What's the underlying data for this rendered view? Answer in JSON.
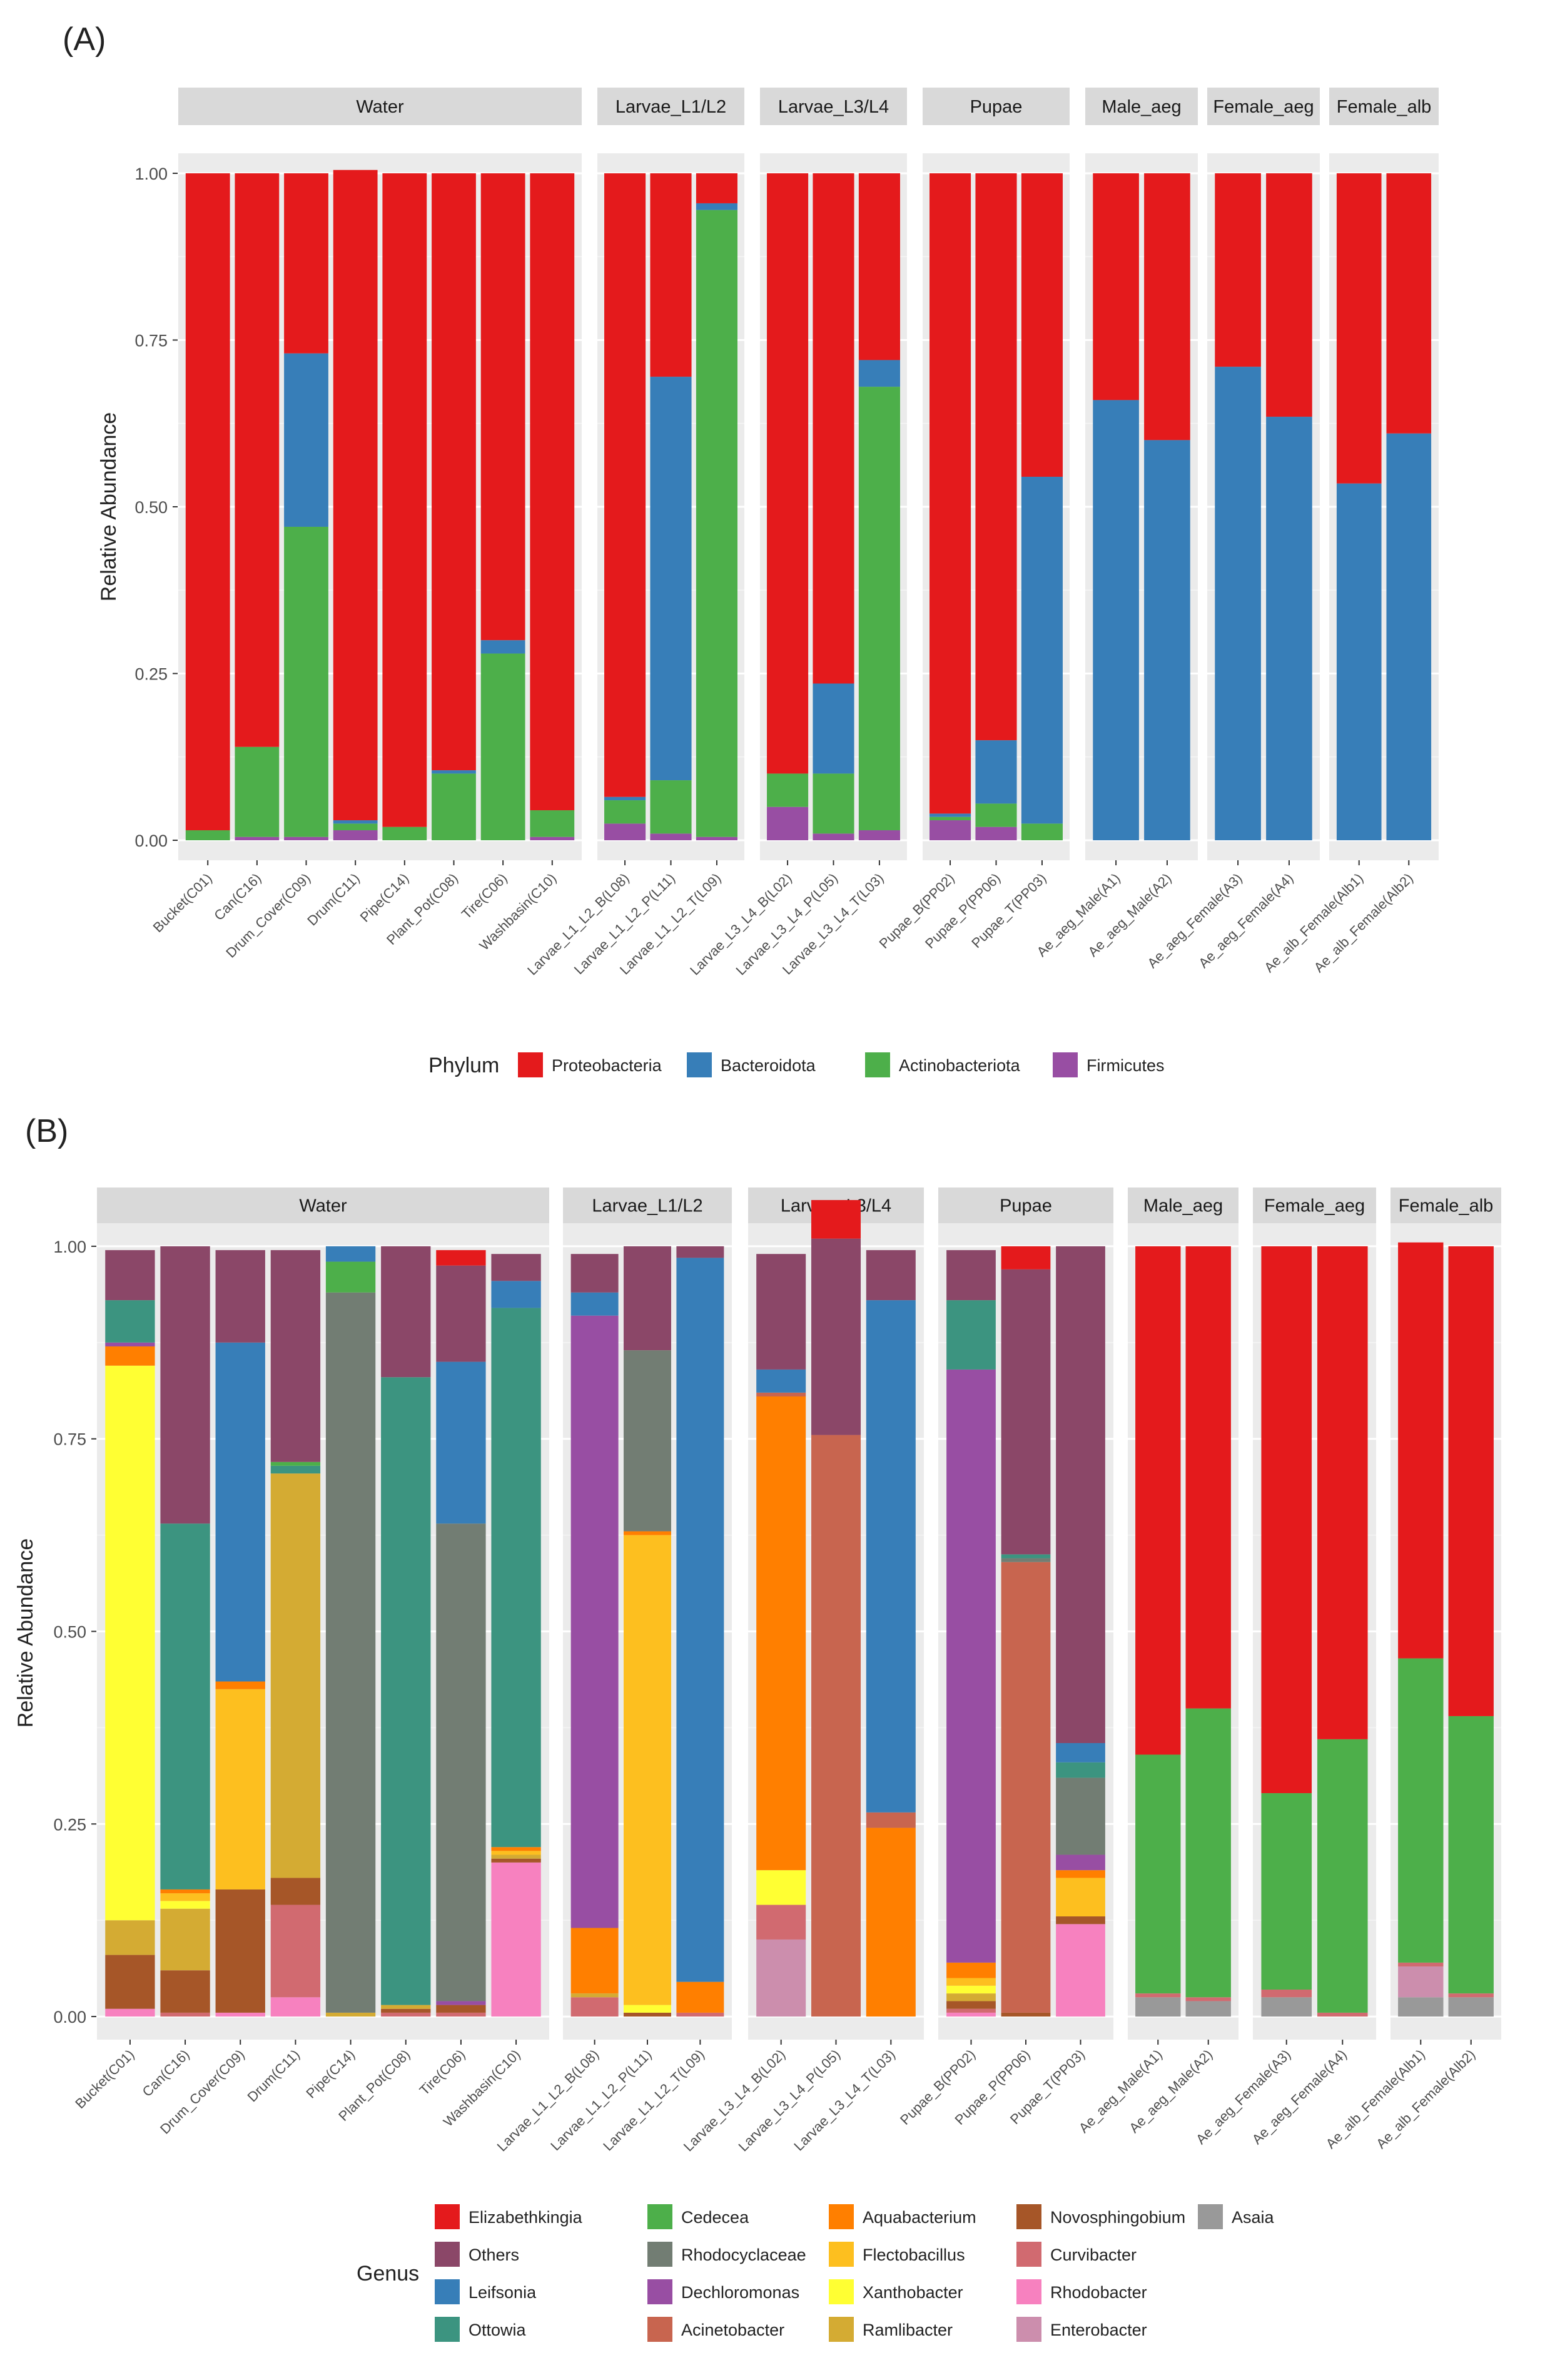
{
  "panel_labels": [
    "(A)",
    "(B)"
  ],
  "chart_data": [
    {
      "type": "bar",
      "stacked": true,
      "title": "(A)",
      "ylabel": "Relative Abundance",
      "ylim": [
        0,
        1
      ],
      "yticks": [
        "0.00",
        "0.25",
        "0.50",
        "0.75",
        "1.00"
      ],
      "legend_title": "Phylum",
      "legend_position": "bottom",
      "groups": [
        {
          "label": "Water",
          "samples": [
            "Bucket(C01)",
            "Can(C16)",
            "Drum_Cover(C09)",
            "Drum(C11)",
            "Pipe(C14)",
            "Plant_Pot(C08)",
            "Tire(C06)",
            "Washbasin(C10)"
          ]
        },
        {
          "label": "Larvae_L1/L2",
          "samples": [
            "Larvae_L1_L2_B(L08)",
            "Larvae_L1_L2_P(L11)",
            "Larvae_L1_L2_T(L09)"
          ]
        },
        {
          "label": "Larvae_L3/L4",
          "samples": [
            "Larvae_L3_L4_B(L02)",
            "Larvae_L3_L4_P(L05)",
            "Larvae_L3_L4_T(L03)"
          ]
        },
        {
          "label": "Pupae",
          "samples": [
            "Pupae_B(PP02)",
            "Pupae_P(PP06)",
            "Pupae_T(PP03)"
          ]
        },
        {
          "label": "Male_aeg",
          "samples": [
            "Ae_aeg_Male(A1)",
            "Ae_aeg_Male(A2)"
          ]
        },
        {
          "label": "Female_aeg",
          "samples": [
            "Ae_aeg_Female(A3)",
            "Ae_aeg_Female(A4)"
          ]
        },
        {
          "label": "Female_alb",
          "samples": [
            "Ae_alb_Female(Alb1)",
            "Ae_alb_Female(Alb2)"
          ]
        }
      ],
      "stack_order": [
        "Firmicutes",
        "Actinobacteriota",
        "Bacteroidota",
        "Proteobacteria"
      ],
      "series": [
        {
          "name": "Proteobacteria",
          "color": "#E41A1C",
          "values": [
            0.985,
            0.86,
            0.27,
            0.975,
            0.98,
            0.895,
            0.7,
            0.955,
            0.935,
            0.305,
            0.045,
            0.9,
            0.765,
            0.28,
            0.96,
            0.85,
            0.455,
            0.34,
            0.4,
            0.29,
            0.365,
            0.465,
            0.39
          ]
        },
        {
          "name": "Bacteroidota",
          "color": "#377EB8",
          "values": [
            0.0,
            0.0,
            0.26,
            0.005,
            0.0,
            0.005,
            0.02,
            0.0,
            0.005,
            0.605,
            0.01,
            0.0,
            0.135,
            0.04,
            0.005,
            0.095,
            0.52,
            0.66,
            0.6,
            0.71,
            0.635,
            0.535,
            0.61
          ]
        },
        {
          "name": "Actinobacteriota",
          "color": "#4DAF4A",
          "values": [
            0.015,
            0.135,
            0.465,
            0.01,
            0.02,
            0.1,
            0.28,
            0.04,
            0.035,
            0.08,
            0.94,
            0.05,
            0.09,
            0.665,
            0.005,
            0.035,
            0.025,
            0.0,
            0.0,
            0.0,
            0.0,
            0.0,
            0.0
          ]
        },
        {
          "name": "Firmicutes",
          "color": "#984EA3",
          "values": [
            0.0,
            0.005,
            0.005,
            0.015,
            0.0,
            0.0,
            0.0,
            0.005,
            0.025,
            0.01,
            0.005,
            0.05,
            0.01,
            0.015,
            0.03,
            0.02,
            0.0,
            0.0,
            0.0,
            0.0,
            0.0,
            0.0,
            0.0
          ]
        }
      ]
    },
    {
      "type": "bar",
      "stacked": true,
      "title": "(B)",
      "ylabel": "Relative Abundance",
      "ylim": [
        0,
        1
      ],
      "yticks": [
        "0.00",
        "0.25",
        "0.50",
        "0.75",
        "1.00"
      ],
      "legend_title": "Genus",
      "legend_position": "bottom",
      "groups": [
        {
          "label": "Water",
          "samples": [
            "Bucket(C01)",
            "Can(C16)",
            "Drum_Cover(C09)",
            "Drum(C11)",
            "Pipe(C14)",
            "Plant_Pot(C08)",
            "Tire(C06)",
            "Washbasin(C10)"
          ]
        },
        {
          "label": "Larvae_L1/L2",
          "samples": [
            "Larvae_L1_L2_B(L08)",
            "Larvae_L1_L2_P(L11)",
            "Larvae_L1_L2_T(L09)"
          ]
        },
        {
          "label": "Larvae_L3/L4",
          "samples": [
            "Larvae_L3_L4_B(L02)",
            "Larvae_L3_L4_P(L05)",
            "Larvae_L3_L4_T(L03)"
          ]
        },
        {
          "label": "Pupae",
          "samples": [
            "Pupae_B(PP02)",
            "Pupae_P(PP06)",
            "Pupae_T(PP03)"
          ]
        },
        {
          "label": "Male_aeg",
          "samples": [
            "Ae_aeg_Male(A1)",
            "Ae_aeg_Male(A2)"
          ]
        },
        {
          "label": "Female_aeg",
          "samples": [
            "Ae_aeg_Female(A3)",
            "Ae_aeg_Female(A4)"
          ]
        },
        {
          "label": "Female_alb",
          "samples": [
            "Ae_alb_Female(Alb1)",
            "Ae_alb_Female(Alb2)"
          ]
        }
      ],
      "stack_order": [
        "Asaia",
        "Rhodobacter",
        "Enterobacter",
        "Curvibacter",
        "Novosphingobium",
        "Ramlibacter",
        "Xanthobacter",
        "Flectobacillus",
        "Aquabacterium",
        "Acinetobacter",
        "Dechloromonas",
        "Rhodocyclaceae",
        "Ottowia",
        "Cedecea",
        "Leifsonia",
        "Others",
        "Elizabethkingia"
      ],
      "series": [
        {
          "name": "Elizabethkingia",
          "color": "#E41A1C",
          "values": [
            0.0,
            0.0,
            0.0,
            0.0,
            0.0,
            0.0,
            0.02,
            0.0,
            0.0,
            0.0,
            0.0,
            0.0,
            0.05,
            0.0,
            0.0,
            0.03,
            0.0,
            0.66,
            0.6,
            0.71,
            0.64,
            0.54,
            0.61
          ]
        },
        {
          "name": "Others",
          "color": "#8B4768",
          "values": [
            0.065,
            0.36,
            0.12,
            0.275,
            0.0,
            0.17,
            0.125,
            0.035,
            0.05,
            0.135,
            0.015,
            0.15,
            0.255,
            0.065,
            0.065,
            0.37,
            0.645,
            0.0,
            0.0,
            0.0,
            0.0,
            0.0,
            0.0
          ]
        },
        {
          "name": "Leifsonia",
          "color": "#377EB8",
          "values": [
            0.0,
            0.0,
            0.44,
            0.0,
            0.02,
            0.0,
            0.21,
            0.035,
            0.03,
            0.0,
            0.94,
            0.03,
            0.0,
            0.665,
            0.0,
            0.0,
            0.025,
            0.0,
            0.0,
            0.0,
            0.0,
            0.0,
            0.0
          ]
        },
        {
          "name": "Cedecea",
          "color": "#4DAF4A",
          "values": [
            0.0,
            0.0,
            0.0,
            0.005,
            0.04,
            0.0,
            0.0,
            0.0,
            0.0,
            0.0,
            0.0,
            0.0,
            0.0,
            0.0,
            0.0,
            0.0,
            0.0,
            0.31,
            0.375,
            0.255,
            0.355,
            0.395,
            0.36
          ]
        },
        {
          "name": "Ottowia",
          "color": "#3C9480",
          "values": [
            0.055,
            0.475,
            0.0,
            0.01,
            0.0,
            0.815,
            0.0,
            0.7,
            0.0,
            0.0,
            0.0,
            0.0,
            0.0,
            0.0,
            0.09,
            0.005,
            0.02,
            0.0,
            0.0,
            0.0,
            0.0,
            0.0,
            0.0
          ]
        },
        {
          "name": "Rhodocyclaceae",
          "color": "#727D73",
          "values": [
            0.0,
            0.0,
            0.0,
            0.0,
            0.935,
            0.0,
            0.62,
            0.0,
            0.0,
            0.235,
            0.0,
            0.0,
            0.0,
            0.0,
            0.0,
            0.005,
            0.1,
            0.0,
            0.0,
            0.0,
            0.0,
            0.0,
            0.0
          ]
        },
        {
          "name": "Dechloromonas",
          "color": "#984EA3",
          "values": [
            0.005,
            0.0,
            0.0,
            0.0,
            0.0,
            0.0,
            0.005,
            0.0,
            0.795,
            0.0,
            0.0,
            0.0,
            0.0,
            0.0,
            0.77,
            0.0,
            0.02,
            0.0,
            0.0,
            0.0,
            0.0,
            0.0,
            0.0
          ]
        },
        {
          "name": "Acinetobacter",
          "color": "#C8654F",
          "values": [
            0.0,
            0.0,
            0.0,
            0.0,
            0.0,
            0.0,
            0.0,
            0.0,
            0.0,
            0.0,
            0.0,
            0.005,
            0.755,
            0.02,
            0.0,
            0.585,
            0.0,
            0.0,
            0.0,
            0.0,
            0.0,
            0.0,
            0.0
          ]
        },
        {
          "name": "Aquabacterium",
          "color": "#FF7F00",
          "values": [
            0.025,
            0.005,
            0.01,
            0.0,
            0.0,
            0.0,
            0.0,
            0.005,
            0.085,
            0.005,
            0.04,
            0.615,
            0.0,
            0.245,
            0.02,
            0.0,
            0.01,
            0.0,
            0.0,
            0.0,
            0.0,
            0.0,
            0.0
          ]
        },
        {
          "name": "Flectobacillus",
          "color": "#FDBF1F",
          "values": [
            0.0,
            0.01,
            0.26,
            0.0,
            0.0,
            0.0,
            0.0,
            0.005,
            0.0,
            0.61,
            0.0,
            0.0,
            0.0,
            0.0,
            0.01,
            0.0,
            0.05,
            0.0,
            0.0,
            0.0,
            0.0,
            0.0,
            0.0
          ]
        },
        {
          "name": "Xanthobacter",
          "color": "#FFFF33",
          "values": [
            0.72,
            0.01,
            0.0,
            0.0,
            0.0,
            0.0,
            0.0,
            0.0,
            0.0,
            0.01,
            0.0,
            0.045,
            0.0,
            0.0,
            0.01,
            0.0,
            0.0,
            0.0,
            0.0,
            0.0,
            0.0,
            0.0,
            0.0
          ]
        },
        {
          "name": "Ramlibacter",
          "color": "#D4AB33",
          "values": [
            0.045,
            0.08,
            0.0,
            0.525,
            0.005,
            0.005,
            0.0,
            0.005,
            0.005,
            0.0,
            0.0,
            0.0,
            0.0,
            0.0,
            0.01,
            0.0,
            0.0,
            0.0,
            0.0,
            0.0,
            0.0,
            0.0,
            0.0
          ]
        },
        {
          "name": "Novosphingobium",
          "color": "#A65628",
          "values": [
            0.07,
            0.055,
            0.16,
            0.035,
            0.0,
            0.005,
            0.01,
            0.005,
            0.0,
            0.005,
            0.0,
            0.0,
            0.0,
            0.0,
            0.01,
            0.005,
            0.01,
            0.0,
            0.0,
            0.0,
            0.0,
            0.0,
            0.0
          ]
        },
        {
          "name": "Curvibacter",
          "color": "#D16A70",
          "values": [
            0.0,
            0.005,
            0.0,
            0.12,
            0.0,
            0.005,
            0.005,
            0.0,
            0.025,
            0.0,
            0.005,
            0.045,
            0.0,
            0.0,
            0.005,
            0.0,
            0.0,
            0.005,
            0.005,
            0.01,
            0.005,
            0.005,
            0.005
          ]
        },
        {
          "name": "Rhodobacter",
          "color": "#F781BF",
          "values": [
            0.01,
            0.0,
            0.005,
            0.025,
            0.0,
            0.0,
            0.0,
            0.2,
            0.0,
            0.0,
            0.0,
            0.0,
            0.0,
            0.0,
            0.005,
            0.0,
            0.12,
            0.0,
            0.0,
            0.0,
            0.0,
            0.0,
            0.0
          ]
        },
        {
          "name": "Enterobacter",
          "color": "#CC8EAD",
          "values": [
            0.0,
            0.0,
            0.0,
            0.0,
            0.0,
            0.0,
            0.0,
            0.0,
            0.0,
            0.0,
            0.0,
            0.1,
            0.0,
            0.0,
            0.0,
            0.0,
            0.0,
            0.0,
            0.0,
            0.0,
            0.0,
            0.04,
            0.0
          ]
        },
        {
          "name": "Asaia",
          "color": "#999999",
          "values": [
            0.0,
            0.0,
            0.0,
            0.0,
            0.0,
            0.0,
            0.0,
            0.0,
            0.0,
            0.0,
            0.0,
            0.0,
            0.0,
            0.0,
            0.0,
            0.0,
            0.0,
            0.025,
            0.02,
            0.025,
            0.0,
            0.025,
            0.025
          ]
        }
      ],
      "legend_order": [
        "Elizabethkingia",
        "Others",
        "Leifsonia",
        "Ottowia",
        "Cedecea",
        "Rhodocyclaceae",
        "Dechloromonas",
        "Acinetobacter",
        "Aquabacterium",
        "Flectobacillus",
        "Xanthobacter",
        "Ramlibacter",
        "Novosphingobium",
        "Curvibacter",
        "Rhodobacter",
        "Enterobacter",
        "Asaia"
      ]
    }
  ]
}
